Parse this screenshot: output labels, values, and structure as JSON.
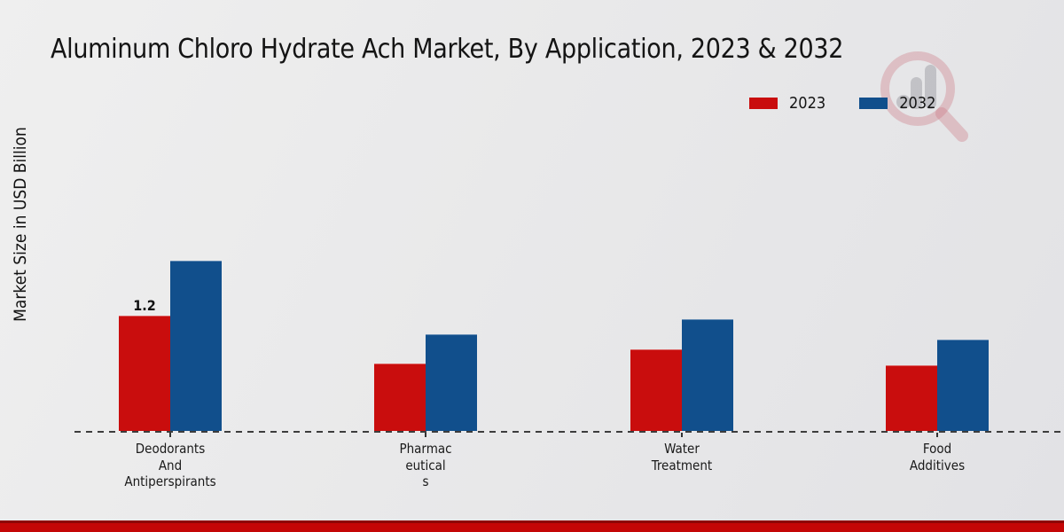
{
  "title": "Aluminum Chloro Hydrate Ach Market, By Application, 2023 & 2032",
  "y_axis_label": "Market Size in USD Billion",
  "legend": [
    {
      "label": "2023",
      "color": "#c90d0d"
    },
    {
      "label": "2032",
      "color": "#114f8c"
    }
  ],
  "watermark": {
    "name": "market-research-magnifier-logo"
  },
  "colors": {
    "series_2023": "#c90d0d",
    "series_2032": "#114f8c",
    "baseline": "#3d3d3d",
    "bottom_strip_main": "#c40606",
    "bottom_strip_edge": "#8e0505",
    "background": "#e9e9ea",
    "text": "#141414"
  },
  "chart_data": {
    "type": "bar",
    "title": "Aluminum Chloro Hydrate Ach Market, By Application, 2023 & 2032",
    "xlabel": "",
    "ylabel": "Market Size in USD Billion",
    "categories": [
      "Deodorants And Antiperspirants",
      "Pharmaceuticals",
      "Water Treatment",
      "Food Additives"
    ],
    "categories_display_lines": [
      [
        "Deodorants",
        "And",
        "Antiperspirants"
      ],
      [
        "Pharmac",
        "eutical",
        "s"
      ],
      [
        "Water",
        "Treatment"
      ],
      [
        "Food",
        "Additives"
      ]
    ],
    "series": [
      {
        "name": "2023",
        "color": "#c90d0d",
        "values": [
          1.2,
          0.7,
          0.85,
          0.68
        ]
      },
      {
        "name": "2032",
        "color": "#114f8c",
        "values": [
          1.78,
          1.0,
          1.16,
          0.95
        ]
      }
    ],
    "data_labels": [
      {
        "series_index": 0,
        "category_index": 0,
        "text": "1.2"
      }
    ],
    "ylim": [
      0,
      1.9
    ],
    "grid": false,
    "y_axis_ticks_visible": false,
    "legend_position": "top-right",
    "baseline_style": "dashed"
  }
}
